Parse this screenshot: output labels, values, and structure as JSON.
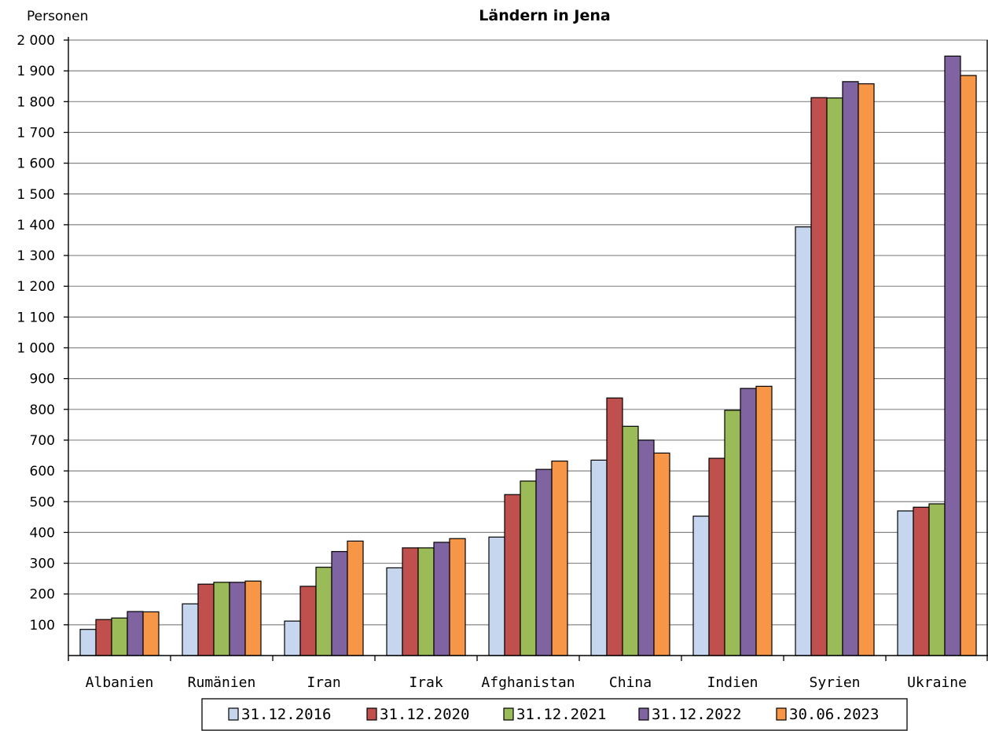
{
  "chart_data": {
    "type": "bar",
    "title": "Ländern in Jena",
    "ylabel": "Personen",
    "ylim": [
      0,
      2000
    ],
    "yticks": [
      100,
      200,
      300,
      400,
      500,
      600,
      700,
      800,
      900,
      1000,
      1100,
      1200,
      1300,
      1400,
      1500,
      1600,
      1700,
      1800,
      1900,
      2000
    ],
    "ytick_labels": [
      "100",
      "200",
      "300",
      "400",
      "500",
      "600",
      "700",
      "800",
      "900",
      "1 000",
      "1 100",
      "1 200",
      "1 300",
      "1 400",
      "1 500",
      "1 600",
      "1 700",
      "1 800",
      "1 900",
      "2 000"
    ],
    "grid": true,
    "legend_position": "bottom",
    "categories": [
      "Albanien",
      "Rumänien",
      "Iran",
      "Irak",
      "Afghanistan",
      "China",
      "Indien",
      "Syrien",
      "Ukraine"
    ],
    "series": [
      {
        "name": "31.12.2016",
        "color": "#c5d6ee",
        "values": [
          85,
          168,
          112,
          285,
          385,
          635,
          453,
          1393,
          470
        ]
      },
      {
        "name": "31.12.2020",
        "color": "#c0504d",
        "values": [
          117,
          232,
          225,
          350,
          523,
          837,
          641,
          1813,
          482
        ]
      },
      {
        "name": "31.12.2021",
        "color": "#9bbb59",
        "values": [
          122,
          238,
          287,
          350,
          567,
          745,
          797,
          1812,
          493
        ]
      },
      {
        "name": "31.12.2022",
        "color": "#8064a2",
        "values": [
          143,
          238,
          338,
          368,
          605,
          700,
          868,
          1865,
          1948
        ]
      },
      {
        "name": "30.06.2023",
        "color": "#f79646",
        "values": [
          142,
          242,
          372,
          380,
          632,
          658,
          875,
          1858,
          1885
        ]
      }
    ]
  }
}
